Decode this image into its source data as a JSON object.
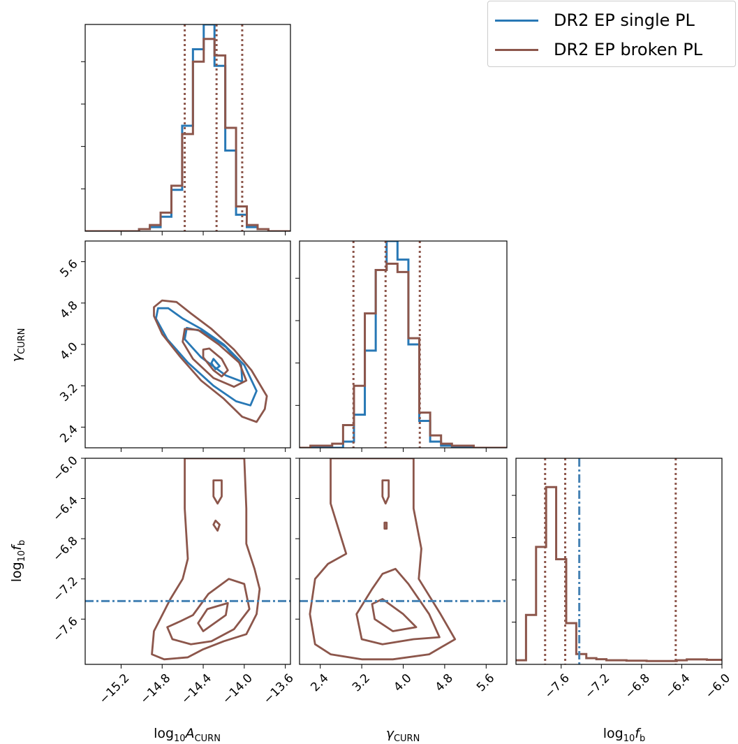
{
  "colors": {
    "single": "#2878b5",
    "broken": "#8c564b",
    "truth": "#4682b4"
  },
  "legend": {
    "position": "top-right",
    "entries": [
      {
        "label": "DR2 EP single PL",
        "color": "#2878b5"
      },
      {
        "label": "DR2 EP broken PL",
        "color": "#8c564b"
      }
    ]
  },
  "axis_labels": {
    "logA": {
      "base": "log",
      "base_sub": "10",
      "sym": "A",
      "sym_sub": "CURN"
    },
    "gamma": {
      "sym": "γ",
      "sym_sub": "CURN"
    },
    "logfb": {
      "base": "log",
      "base_sub": "10",
      "sym": "f",
      "sym_sub": "b"
    }
  },
  "chart_data": {
    "type": "corner",
    "parameters": [
      {
        "name": "log10_A_CURN",
        "range": [
          -15.55,
          -13.55
        ],
        "ticks": [
          "−15.2",
          "−14.8",
          "−14.4",
          "−14.0",
          "−13.6"
        ]
      },
      {
        "name": "gamma_CURN",
        "range": [
          2.0,
          6.0
        ],
        "ticks": [
          "2.4",
          "3.2",
          "4.0",
          "4.8",
          "5.6"
        ]
      },
      {
        "name": "log10_f_b",
        "range": [
          -8.05,
          -6.0
        ],
        "ticks": [
          "−7.6",
          "−7.2",
          "−6.8",
          "−6.4",
          "−6.0"
        ]
      }
    ],
    "histograms": {
      "log10_A_CURN": {
        "bin_start": -15.55,
        "bin_width": 0.105,
        "single": [
          0,
          0,
          0,
          0,
          0,
          0.01,
          0.02,
          0.07,
          0.2,
          0.51,
          0.88,
          1.0,
          0.8,
          0.39,
          0.08,
          0.02,
          0.01,
          0,
          0
        ],
        "broken": [
          0,
          0,
          0,
          0,
          0,
          0.01,
          0.03,
          0.09,
          0.22,
          0.47,
          0.82,
          0.93,
          0.85,
          0.5,
          0.12,
          0.03,
          0.01,
          0,
          0
        ],
        "quantiles_broken": [
          -14.58,
          -14.27,
          -14.02
        ]
      },
      "gamma_CURN": {
        "bin_start": 2.0,
        "bin_width": 0.21,
        "single": [
          0,
          0,
          0,
          0,
          0.03,
          0.16,
          0.47,
          0.86,
          1.0,
          0.91,
          0.5,
          0.13,
          0.03,
          0.01,
          0,
          0,
          0,
          0,
          0
        ],
        "broken": [
          0,
          0.01,
          0.01,
          0.02,
          0.11,
          0.3,
          0.65,
          0.86,
          0.89,
          0.85,
          0.53,
          0.17,
          0.06,
          0.02,
          0.01,
          0.01,
          0,
          0,
          0
        ],
        "quantiles_broken": [
          3.04,
          3.66,
          4.32
        ]
      },
      "log10_f_b": {
        "bin_start": -8.05,
        "bin_width": 0.1,
        "single": [],
        "broken": [
          0.02,
          0.24,
          0.57,
          0.86,
          0.51,
          0.2,
          0.05,
          0.03,
          0.025,
          0.02,
          0.02,
          0.018,
          0.018,
          0.016,
          0.016,
          0.016,
          0.02,
          0.024,
          0.024,
          0.022,
          0.022
        ],
        "quantiles_broken": [
          -7.76,
          -7.56,
          -6.46
        ],
        "truth_line": -7.42
      }
    },
    "contours_2d": [
      {
        "x": "log10_A_CURN",
        "y": "gamma_CURN",
        "series": "single",
        "levels": [
          [
            [
              -14.84,
              4.7
            ],
            [
              -14.74,
              4.7
            ],
            [
              -14.6,
              4.5
            ],
            [
              -14.42,
              4.3
            ],
            [
              -14.2,
              4.0
            ],
            [
              -14.0,
              3.6
            ],
            [
              -13.88,
              3.1
            ],
            [
              -13.94,
              2.82
            ],
            [
              -14.08,
              2.9
            ],
            [
              -14.3,
              3.2
            ],
            [
              -14.55,
              3.65
            ],
            [
              -14.75,
              4.1
            ],
            [
              -14.86,
              4.5
            ]
          ],
          [
            [
              -14.56,
              4.32
            ],
            [
              -14.4,
              4.25
            ],
            [
              -14.18,
              3.95
            ],
            [
              -14.03,
              3.6
            ],
            [
              -14.02,
              3.28
            ],
            [
              -14.18,
              3.4
            ],
            [
              -14.42,
              3.75
            ],
            [
              -14.58,
              4.1
            ]
          ],
          [
            [
              -14.3,
              3.72
            ],
            [
              -14.24,
              3.58
            ],
            [
              -14.28,
              3.52
            ],
            [
              -14.32,
              3.64
            ]
          ]
        ]
      },
      {
        "x": "log10_A_CURN",
        "y": "gamma_CURN",
        "series": "broken",
        "levels": [
          [
            [
              -14.88,
              4.72
            ],
            [
              -14.8,
              4.85
            ],
            [
              -14.66,
              4.82
            ],
            [
              -14.52,
              4.6
            ],
            [
              -14.32,
              4.3
            ],
            [
              -14.1,
              3.9
            ],
            [
              -13.93,
              3.5
            ],
            [
              -13.78,
              3.0
            ],
            [
              -13.8,
              2.75
            ],
            [
              -13.88,
              2.5
            ],
            [
              -14.02,
              2.6
            ],
            [
              -14.2,
              2.95
            ],
            [
              -14.42,
              3.3
            ],
            [
              -14.62,
              3.75
            ],
            [
              -14.8,
              4.2
            ],
            [
              -14.88,
              4.55
            ]
          ],
          [
            [
              -14.58,
              4.3
            ],
            [
              -14.45,
              4.28
            ],
            [
              -14.25,
              4.0
            ],
            [
              -14.05,
              3.65
            ],
            [
              -13.98,
              3.3
            ],
            [
              -14.1,
              3.18
            ],
            [
              -14.3,
              3.35
            ],
            [
              -14.5,
              3.72
            ],
            [
              -14.6,
              4.05
            ]
          ],
          [
            [
              -14.4,
              3.9
            ],
            [
              -14.34,
              3.92
            ],
            [
              -14.22,
              3.72
            ],
            [
              -14.16,
              3.5
            ],
            [
              -14.22,
              3.38
            ],
            [
              -14.3,
              3.5
            ],
            [
              -14.4,
              3.75
            ]
          ]
        ]
      },
      {
        "x": "log10_A_CURN",
        "y": "log10_f_b",
        "series": "broken",
        "levels": [
          [
            [
              -14.58,
              -6.0
            ],
            [
              -14.58,
              -6.5
            ],
            [
              -14.55,
              -7.0
            ],
            [
              -14.6,
              -7.2
            ],
            [
              -14.72,
              -7.4
            ],
            [
              -14.88,
              -7.72
            ],
            [
              -14.9,
              -7.95
            ],
            [
              -14.78,
              -8.0
            ],
            [
              -14.55,
              -7.98
            ],
            [
              -14.4,
              -7.9
            ],
            [
              -14.2,
              -7.82
            ],
            [
              -13.98,
              -7.75
            ],
            [
              -13.88,
              -7.55
            ],
            [
              -13.85,
              -7.3
            ],
            [
              -13.9,
              -7.1
            ],
            [
              -13.98,
              -6.85
            ],
            [
              -13.98,
              -6.5
            ],
            [
              -14.0,
              -6.0
            ]
          ],
          [
            [
              -14.5,
              -7.56
            ],
            [
              -14.35,
              -7.35
            ],
            [
              -14.15,
              -7.2
            ],
            [
              -14.0,
              -7.25
            ],
            [
              -13.95,
              -7.5
            ],
            [
              -14.1,
              -7.7
            ],
            [
              -14.32,
              -7.82
            ],
            [
              -14.52,
              -7.85
            ],
            [
              -14.7,
              -7.8
            ],
            [
              -14.75,
              -7.68
            ],
            [
              -14.62,
              -7.62
            ]
          ],
          [
            [
              -14.36,
              -7.5
            ],
            [
              -14.16,
              -7.44
            ],
            [
              -14.18,
              -7.56
            ],
            [
              -14.4,
              -7.72
            ],
            [
              -14.45,
              -7.64
            ]
          ],
          [
            [
              -14.3,
              -6.22
            ],
            [
              -14.22,
              -6.22
            ],
            [
              -14.22,
              -6.38
            ],
            [
              -14.26,
              -6.45
            ],
            [
              -14.3,
              -6.38
            ]
          ],
          [
            [
              -14.28,
              -6.62
            ],
            [
              -14.24,
              -6.66
            ],
            [
              -14.26,
              -6.72
            ],
            [
              -14.3,
              -6.66
            ]
          ]
        ]
      },
      {
        "x": "gamma_CURN",
        "y": "log10_f_b",
        "series": "broken",
        "levels": [
          [
            [
              2.6,
              -6.0
            ],
            [
              2.6,
              -6.45
            ],
            [
              2.75,
              -6.7
            ],
            [
              2.9,
              -6.95
            ],
            [
              2.55,
              -7.05
            ],
            [
              2.3,
              -7.2
            ],
            [
              2.2,
              -7.55
            ],
            [
              2.3,
              -7.85
            ],
            [
              2.6,
              -7.95
            ],
            [
              3.2,
              -8.0
            ],
            [
              3.8,
              -8.0
            ],
            [
              4.5,
              -7.95
            ],
            [
              5.0,
              -7.8
            ],
            [
              4.72,
              -7.55
            ],
            [
              4.3,
              -7.2
            ],
            [
              4.35,
              -6.9
            ],
            [
              4.2,
              -6.5
            ],
            [
              4.2,
              -6.0
            ]
          ],
          [
            [
              3.6,
              -7.15
            ],
            [
              3.4,
              -7.3
            ],
            [
              3.1,
              -7.55
            ],
            [
              3.2,
              -7.8
            ],
            [
              3.6,
              -7.85
            ],
            [
              4.2,
              -7.8
            ],
            [
              4.7,
              -7.78
            ],
            [
              4.5,
              -7.55
            ],
            [
              4.1,
              -7.25
            ],
            [
              3.85,
              -7.1
            ]
          ],
          [
            [
              3.4,
              -7.45
            ],
            [
              3.6,
              -7.4
            ],
            [
              4.0,
              -7.55
            ],
            [
              4.25,
              -7.68
            ],
            [
              3.8,
              -7.72
            ],
            [
              3.45,
              -7.6
            ]
          ],
          [
            [
              3.6,
              -6.22
            ],
            [
              3.72,
              -6.22
            ],
            [
              3.72,
              -6.38
            ],
            [
              3.66,
              -6.45
            ],
            [
              3.6,
              -6.38
            ]
          ],
          [
            [
              3.64,
              -6.64
            ],
            [
              3.68,
              -6.64
            ],
            [
              3.68,
              -6.7
            ],
            [
              3.64,
              -6.7
            ]
          ]
        ]
      }
    ],
    "reference_line_2d": {
      "param": "log10_f_b",
      "value": -7.42
    },
    "grid": false
  }
}
